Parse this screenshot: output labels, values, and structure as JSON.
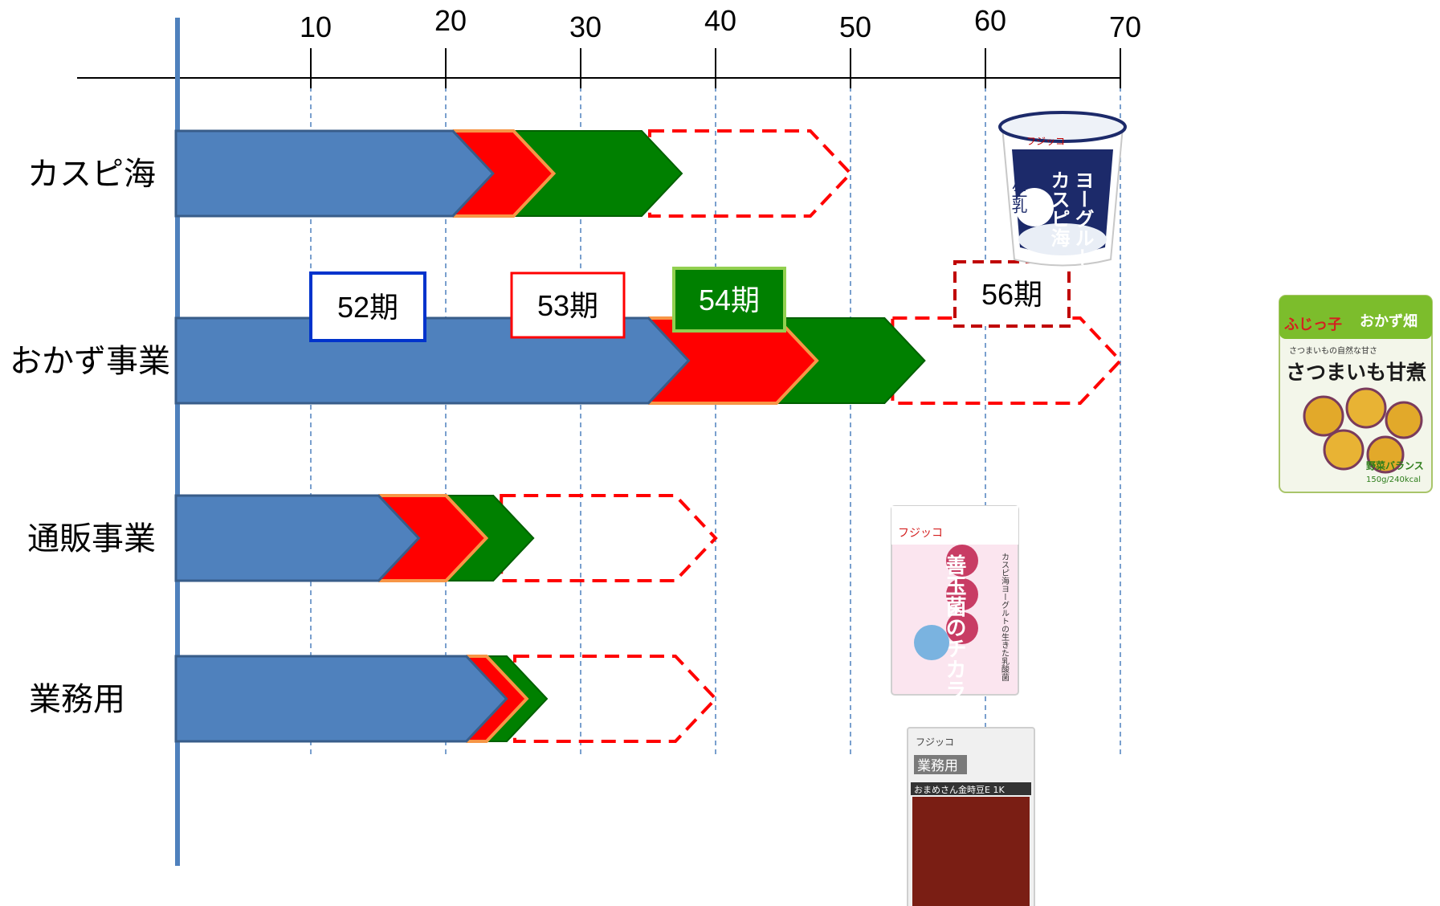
{
  "chart_data": {
    "type": "bar",
    "orientation": "horizontal",
    "subtype": "stacked-chevron",
    "x_ticks": [
      10,
      20,
      30,
      40,
      50,
      60,
      70
    ],
    "xlim": [
      0,
      70
    ],
    "grid": true,
    "categories": [
      "カスピ海",
      "おかず事業",
      "通販事業",
      "業務用"
    ],
    "series": [
      {
        "name": "52期",
        "color": "#4f81bd",
        "values": [
          23.5,
          38,
          18,
          24.5
        ]
      },
      {
        "name": "53期",
        "color": "#ff0000",
        "values": [
          28,
          47.5,
          23,
          26
        ]
      },
      {
        "name": "54期",
        "color": "#008000",
        "values": [
          37.5,
          55.5,
          26.5,
          27.5
        ]
      },
      {
        "name": "56期",
        "color": "#ff0000",
        "style": "dashed-outline",
        "values": [
          50,
          70,
          40,
          40
        ]
      }
    ],
    "legend": [
      {
        "label": "52期",
        "style": "blue-border"
      },
      {
        "label": "53期",
        "style": "red-border"
      },
      {
        "label": "54期",
        "style": "green-fill"
      },
      {
        "label": "56期",
        "style": "dashed-red-border"
      }
    ]
  },
  "products": [
    {
      "name": "yogurt-cup",
      "brand": "フジッコ",
      "lines": [
        "カスピ海",
        "ヨーグルト"
      ],
      "sub": "生乳"
    },
    {
      "name": "okazu-pack",
      "brand": "ふじっ子",
      "badge": "おかず畑",
      "title": "さつまいも甘煮",
      "note": "さつまいもの自然な甘さ",
      "bottom": "野菜バランス",
      "weight": "150g/240kcal"
    },
    {
      "name": "supplement-pack",
      "brand": "フジッコ",
      "title": "善玉菌のチカラ",
      "sub": "カスピ海ヨーグルトの生きた乳酸菌"
    },
    {
      "name": "beans-pack",
      "brand": "フジッコ",
      "badge": "業務用",
      "label": "おまめさん金時豆E 1K"
    }
  ]
}
